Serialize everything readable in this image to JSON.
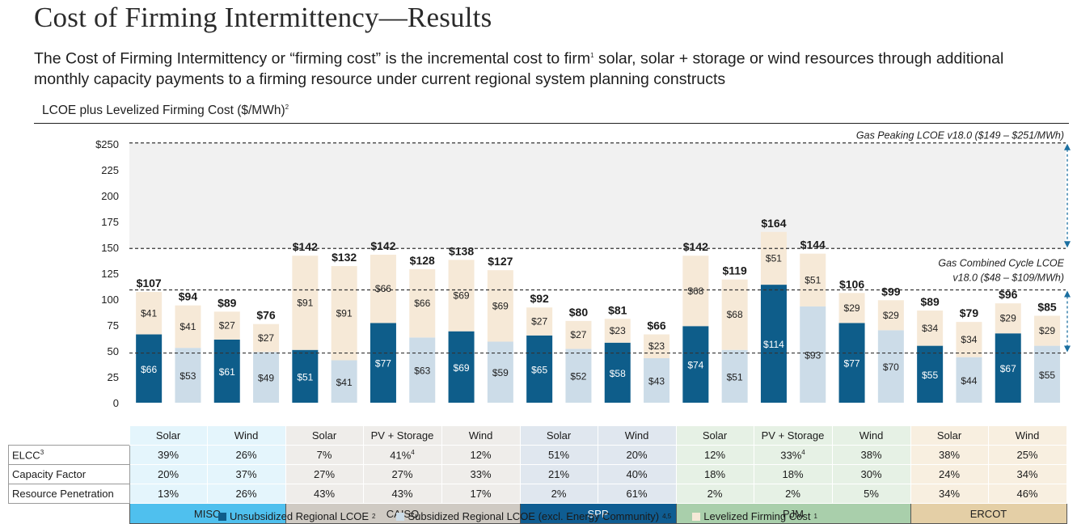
{
  "header": {
    "title": "Cost of Firming Intermittency—Results",
    "subtitle_part1": "The Cost of Firming Intermittency or “firming cost” is the incremental cost to firm",
    "subtitle_sup": "1",
    "subtitle_part2": " solar, solar + storage or wind resources through additional monthly capacity payments to a firming resource under current regional system planning constructs",
    "chart_label": "LCOE plus Levelized Firming Cost ($/MWh)",
    "chart_label_sup": "2"
  },
  "colors": {
    "unsubsidized": "#0e5d8a",
    "subsidized": "#ccdce8",
    "firming": "#f6e9d7",
    "miso": "#4fc0ee",
    "caiso": "#cfcac3",
    "spp": "#0f5d92",
    "pjm": "#a9cfab",
    "ercot": "#e4cfa6"
  },
  "chart_data": {
    "type": "bar",
    "stacked": true,
    "ylim": [
      0,
      250
    ],
    "yticks": [
      "0",
      "25",
      "50",
      "75",
      "100",
      "125",
      "150",
      "175",
      "200",
      "225",
      "$250"
    ],
    "legend_position": "bottom",
    "categories": [
      "Solar",
      "Solar",
      "Wind",
      "Wind",
      "Solar",
      "Solar",
      "PV + Storage",
      "PV + Storage",
      "Wind",
      "Wind",
      "Solar",
      "Solar",
      "Wind",
      "Wind",
      "Solar",
      "Solar",
      "PV + Storage",
      "PV + Storage",
      "Wind",
      "Wind",
      "Solar",
      "Solar",
      "Wind",
      "Wind"
    ],
    "bars": [
      {
        "base": 66,
        "base_label": "$66",
        "sub": false,
        "firm": 41,
        "firm_label": "$41",
        "total_label": "$107"
      },
      {
        "base": 53,
        "base_label": "$53",
        "sub": true,
        "firm": 41,
        "firm_label": "$41",
        "total_label": "$94"
      },
      {
        "base": 61,
        "base_label": "$61",
        "sub": false,
        "firm": 27,
        "firm_label": "$27",
        "total_label": "$89"
      },
      {
        "base": 49,
        "base_label": "$49",
        "sub": true,
        "firm": 27,
        "firm_label": "$27",
        "total_label": "$76"
      },
      {
        "base": 51,
        "base_label": "$51",
        "sub": false,
        "firm": 91,
        "firm_label": "$91",
        "total_label": "$142"
      },
      {
        "base": 41,
        "base_label": "$41",
        "sub": true,
        "firm": 91,
        "firm_label": "$91",
        "total_label": "$132"
      },
      {
        "base": 77,
        "base_label": "$77",
        "sub": false,
        "firm": 66,
        "firm_label": "$66",
        "total_label": "$142"
      },
      {
        "base": 63,
        "base_label": "$63",
        "sub": true,
        "firm": 66,
        "firm_label": "$66",
        "total_label": "$128"
      },
      {
        "base": 69,
        "base_label": "$69",
        "sub": false,
        "firm": 69,
        "firm_label": "$69",
        "total_label": "$138"
      },
      {
        "base": 59,
        "base_label": "$59",
        "sub": true,
        "firm": 69,
        "firm_label": "$69",
        "total_label": "$127"
      },
      {
        "base": 65,
        "base_label": "$65",
        "sub": false,
        "firm": 27,
        "firm_label": "$27",
        "total_label": "$92"
      },
      {
        "base": 52,
        "base_label": "$52",
        "sub": true,
        "firm": 27,
        "firm_label": "$27",
        "total_label": "$80"
      },
      {
        "base": 58,
        "base_label": "$58",
        "sub": false,
        "firm": 23,
        "firm_label": "$23",
        "total_label": "$81"
      },
      {
        "base": 43,
        "base_label": "$43",
        "sub": true,
        "firm": 23,
        "firm_label": "$23",
        "total_label": "$66"
      },
      {
        "base": 74,
        "base_label": "$74",
        "sub": false,
        "firm": 68,
        "firm_label": "$68",
        "total_label": "$142"
      },
      {
        "base": 51,
        "base_label": "$51",
        "sub": true,
        "firm": 68,
        "firm_label": "$68",
        "total_label": "$119"
      },
      {
        "base": 114,
        "base_label": "$114",
        "sub": false,
        "firm": 51,
        "firm_label": "$51",
        "total_label": "$164"
      },
      {
        "base": 93,
        "base_label": "$93",
        "sub": true,
        "firm": 51,
        "firm_label": "$51",
        "total_label": "$144"
      },
      {
        "base": 77,
        "base_label": "$77",
        "sub": false,
        "firm": 29,
        "firm_label": "$29",
        "total_label": "$106"
      },
      {
        "base": 70,
        "base_label": "$70",
        "sub": true,
        "firm": 29,
        "firm_label": "$29",
        "total_label": "$99"
      },
      {
        "base": 55,
        "base_label": "$55",
        "sub": false,
        "firm": 34,
        "firm_label": "$34",
        "total_label": "$89"
      },
      {
        "base": 44,
        "base_label": "$44",
        "sub": true,
        "firm": 34,
        "firm_label": "$34",
        "total_label": "$79"
      },
      {
        "base": 67,
        "base_label": "$67",
        "sub": false,
        "firm": 29,
        "firm_label": "$29",
        "total_label": "$96"
      },
      {
        "base": 55,
        "base_label": "$55",
        "sub": true,
        "firm": 29,
        "firm_label": "$29",
        "total_label": "$85"
      }
    ],
    "reference_lines": [
      {
        "value": 48,
        "label": ""
      },
      {
        "value": 109,
        "label": ""
      },
      {
        "value": 149,
        "label": ""
      },
      {
        "value": 251,
        "label": ""
      }
    ],
    "annotations": {
      "gas_peaking": "Gas Peaking LCOE v18.0 ($149 – $251/MWh)",
      "gas_cc_line1": "Gas Combined Cycle LCOE",
      "gas_cc_line2": "v18.0 ($48 – $109/MWh)"
    }
  },
  "table": {
    "resource_types": [
      "Solar",
      "Wind",
      "Solar",
      "PV + Storage",
      "Wind",
      "Solar",
      "Wind",
      "Solar",
      "PV + Storage",
      "Wind",
      "Solar",
      "Wind"
    ],
    "rows": [
      {
        "label": "ELCC",
        "label_sup": "3",
        "values": [
          "39%",
          "26%",
          "7%",
          "41%",
          "12%",
          "51%",
          "20%",
          "12%",
          "33%",
          "38%",
          "38%",
          "25%"
        ],
        "sups": [
          "",
          "",
          "",
          "4",
          "",
          "",
          "",
          "",
          "4",
          "",
          "",
          ""
        ]
      },
      {
        "label": "Capacity Factor",
        "label_sup": "",
        "values": [
          "20%",
          "37%",
          "27%",
          "27%",
          "33%",
          "21%",
          "40%",
          "18%",
          "18%",
          "30%",
          "24%",
          "34%"
        ],
        "sups": [
          "",
          "",
          "",
          "",
          "",
          "",
          "",
          "",
          "",
          "",
          "",
          ""
        ]
      },
      {
        "label": "Resource Penetration",
        "label_sup": "",
        "values": [
          "13%",
          "26%",
          "43%",
          "43%",
          "17%",
          "2%",
          "61%",
          "2%",
          "2%",
          "5%",
          "34%",
          "46%"
        ],
        "sups": [
          "",
          "",
          "",
          "",
          "",
          "",
          "",
          "",
          "",
          "",
          "",
          ""
        ]
      }
    ],
    "regions": [
      {
        "name": "MISO",
        "color_key": "miso"
      },
      {
        "name": "CAISO",
        "color_key": "caiso"
      },
      {
        "name": "SPP",
        "color_key": "spp"
      },
      {
        "name": "PJM",
        "color_key": "pjm"
      },
      {
        "name": "ERCOT",
        "color_key": "ercot"
      }
    ]
  },
  "legend": {
    "unsubsidized": "Unsubsidized Regional LCOE",
    "unsubsidized_sup": "2",
    "subsidized": "Subsidized Regional LCOE (excl. Energy Community)",
    "subsidized_sup": "4,5",
    "firming": "Levelized Firming Cost",
    "firming_sup": "1"
  }
}
